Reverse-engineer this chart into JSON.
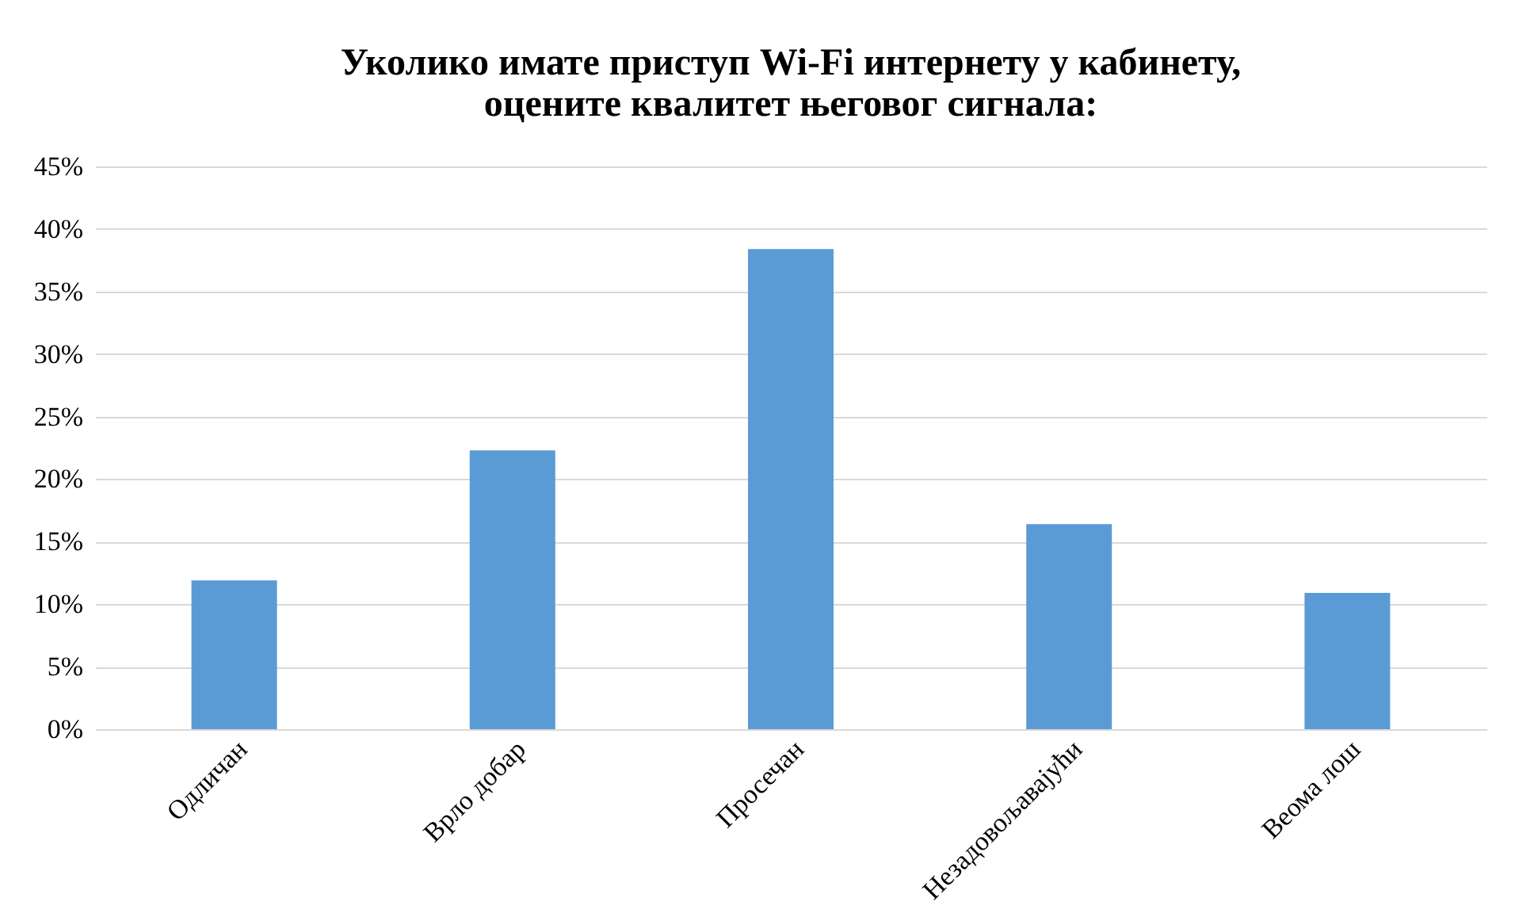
{
  "chart_data": {
    "type": "bar",
    "title": [
      "Уколико имате приступ Wi-Fi интернету у кабинету,",
      "оцените квалитет његовог сигнала:"
    ],
    "categories": [
      "Одличан",
      "Врло добар",
      "Просечан",
      "Незадовољавајући",
      "Веома лош"
    ],
    "values": [
      11.9,
      22.3,
      38.4,
      16.4,
      10.9
    ],
    "color": "#5b9bd5",
    "ylim": [
      0,
      45
    ],
    "yticks": [
      {
        "value": 0,
        "label": "0%"
      },
      {
        "value": 5,
        "label": "5%"
      },
      {
        "value": 10,
        "label": "10%"
      },
      {
        "value": 15,
        "label": "15%"
      },
      {
        "value": 20,
        "label": "20%"
      },
      {
        "value": 25,
        "label": "25%"
      },
      {
        "value": 30,
        "label": "30%"
      },
      {
        "value": 35,
        "label": "35%"
      },
      {
        "value": 40,
        "label": "40%"
      },
      {
        "value": 45,
        "label": "45%"
      }
    ],
    "grid": "y"
  }
}
